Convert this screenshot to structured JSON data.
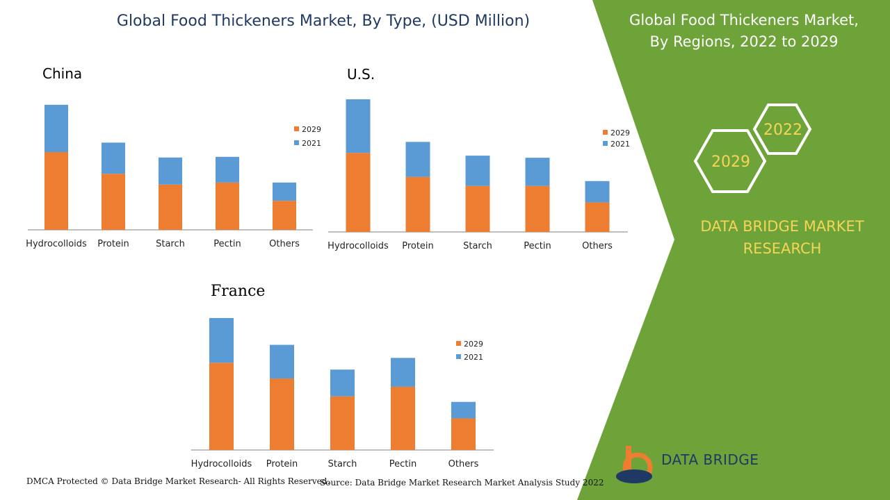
{
  "header": {
    "title": "Global Food Thickeners Market, By Type, (USD Million)"
  },
  "right_panel": {
    "title_line1": "Global Food Thickeners Market,",
    "title_line2": "By Regions, 2022 to 2029",
    "hex_years": [
      "2022",
      "2029"
    ],
    "brand_line1": "DATA BRIDGE MARKET",
    "brand_line2": "RESEARCH",
    "logo_text": "DATA BRIDGE"
  },
  "footer": {
    "left": "DMCA Protected © Data Bridge Market Research- All Rights Reserved.",
    "right": "Source: Data Bridge Market Research Market Analysis Study 2022"
  },
  "colors": {
    "series_2029": "#ed7d31",
    "series_2021": "#5b9bd5",
    "panel_green": "#6ea33a",
    "title_blue": "#1f3864",
    "gold": "#f5d556"
  },
  "chart_data": [
    {
      "type": "bar",
      "stacked": true,
      "title": "China",
      "categories": [
        "Hydrocolloids",
        "Protein",
        "Starch",
        "Pectin",
        "Others"
      ],
      "series": [
        {
          "name": "2029",
          "values": [
            115,
            83,
            67,
            70,
            43
          ]
        },
        {
          "name": "2021",
          "values": [
            70,
            46,
            40,
            38,
            27
          ]
        }
      ],
      "ylim": [
        0,
        190
      ],
      "legend": "right",
      "grid": false
    },
    {
      "type": "bar",
      "stacked": true,
      "title": "U.S.",
      "categories": [
        "Hydrocolloids",
        "Protein",
        "Starch",
        "Pectin",
        "Others"
      ],
      "series": [
        {
          "name": "2029",
          "values": [
            115,
            80,
            67,
            67,
            43
          ]
        },
        {
          "name": "2021",
          "values": [
            78,
            51,
            44,
            41,
            31
          ]
        }
      ],
      "ylim": [
        0,
        195
      ],
      "legend": "right",
      "grid": false
    },
    {
      "type": "bar",
      "stacked": true,
      "title": "France",
      "categories": [
        "Hydrocolloids",
        "Protein",
        "Starch",
        "Pectin",
        "Others"
      ],
      "series": [
        {
          "name": "2029",
          "values": [
            127,
            104,
            78,
            92,
            46
          ]
        },
        {
          "name": "2021",
          "values": [
            65,
            49,
            39,
            42,
            24
          ]
        }
      ],
      "ylim": [
        0,
        195
      ],
      "legend": "right",
      "grid": false
    }
  ]
}
